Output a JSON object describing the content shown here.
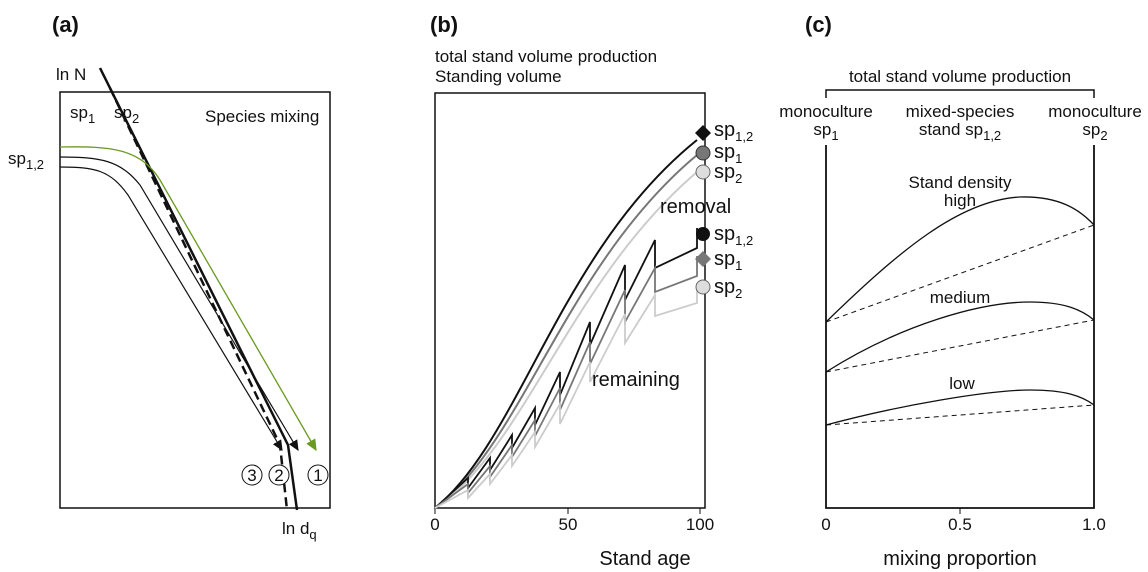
{
  "panel_a": {
    "label": "(a)",
    "y_axis": "ln N",
    "x_axis": {
      "base": "ln d",
      "sub": "q"
    },
    "title": "Species mixing",
    "line_labels": [
      {
        "base": "sp",
        "sub": "1"
      },
      {
        "base": "sp",
        "sub": "2"
      },
      {
        "base": "sp",
        "sub": "1,2"
      }
    ],
    "markers": [
      "3",
      "2",
      "1"
    ]
  },
  "panel_b": {
    "label": "(b)",
    "title_lines": [
      "total stand volume production",
      "Standing volume"
    ],
    "x_ticks": [
      "0",
      "50",
      "100"
    ],
    "x_axis": "Stand age",
    "removal_label": "removal",
    "remaining_label": "remaining",
    "removal_legend": [
      {
        "base": "sp",
        "sub": "1,2"
      },
      {
        "base": "sp",
        "sub": "1"
      },
      {
        "base": "sp",
        "sub": "2"
      }
    ],
    "remaining_legend": [
      {
        "base": "sp",
        "sub": "1,2"
      },
      {
        "base": "sp",
        "sub": "1"
      },
      {
        "base": "sp",
        "sub": "2"
      }
    ]
  },
  "panel_c": {
    "label": "(c)",
    "title": "total stand volume production",
    "columns": [
      {
        "line1": "monoculture",
        "line2": {
          "base": "sp",
          "sub": "1"
        }
      },
      {
        "line1": "mixed-species",
        "line2": {
          "base": "stand sp",
          "sub": "1,2"
        }
      },
      {
        "line1": "monoculture",
        "line2": {
          "base": "sp",
          "sub": "2"
        }
      }
    ],
    "density_title": "Stand density",
    "density_levels": [
      "high",
      "medium",
      "low"
    ],
    "x_ticks": [
      "0",
      "0.5",
      "1.0"
    ],
    "x_axis": "mixing proportion"
  }
}
